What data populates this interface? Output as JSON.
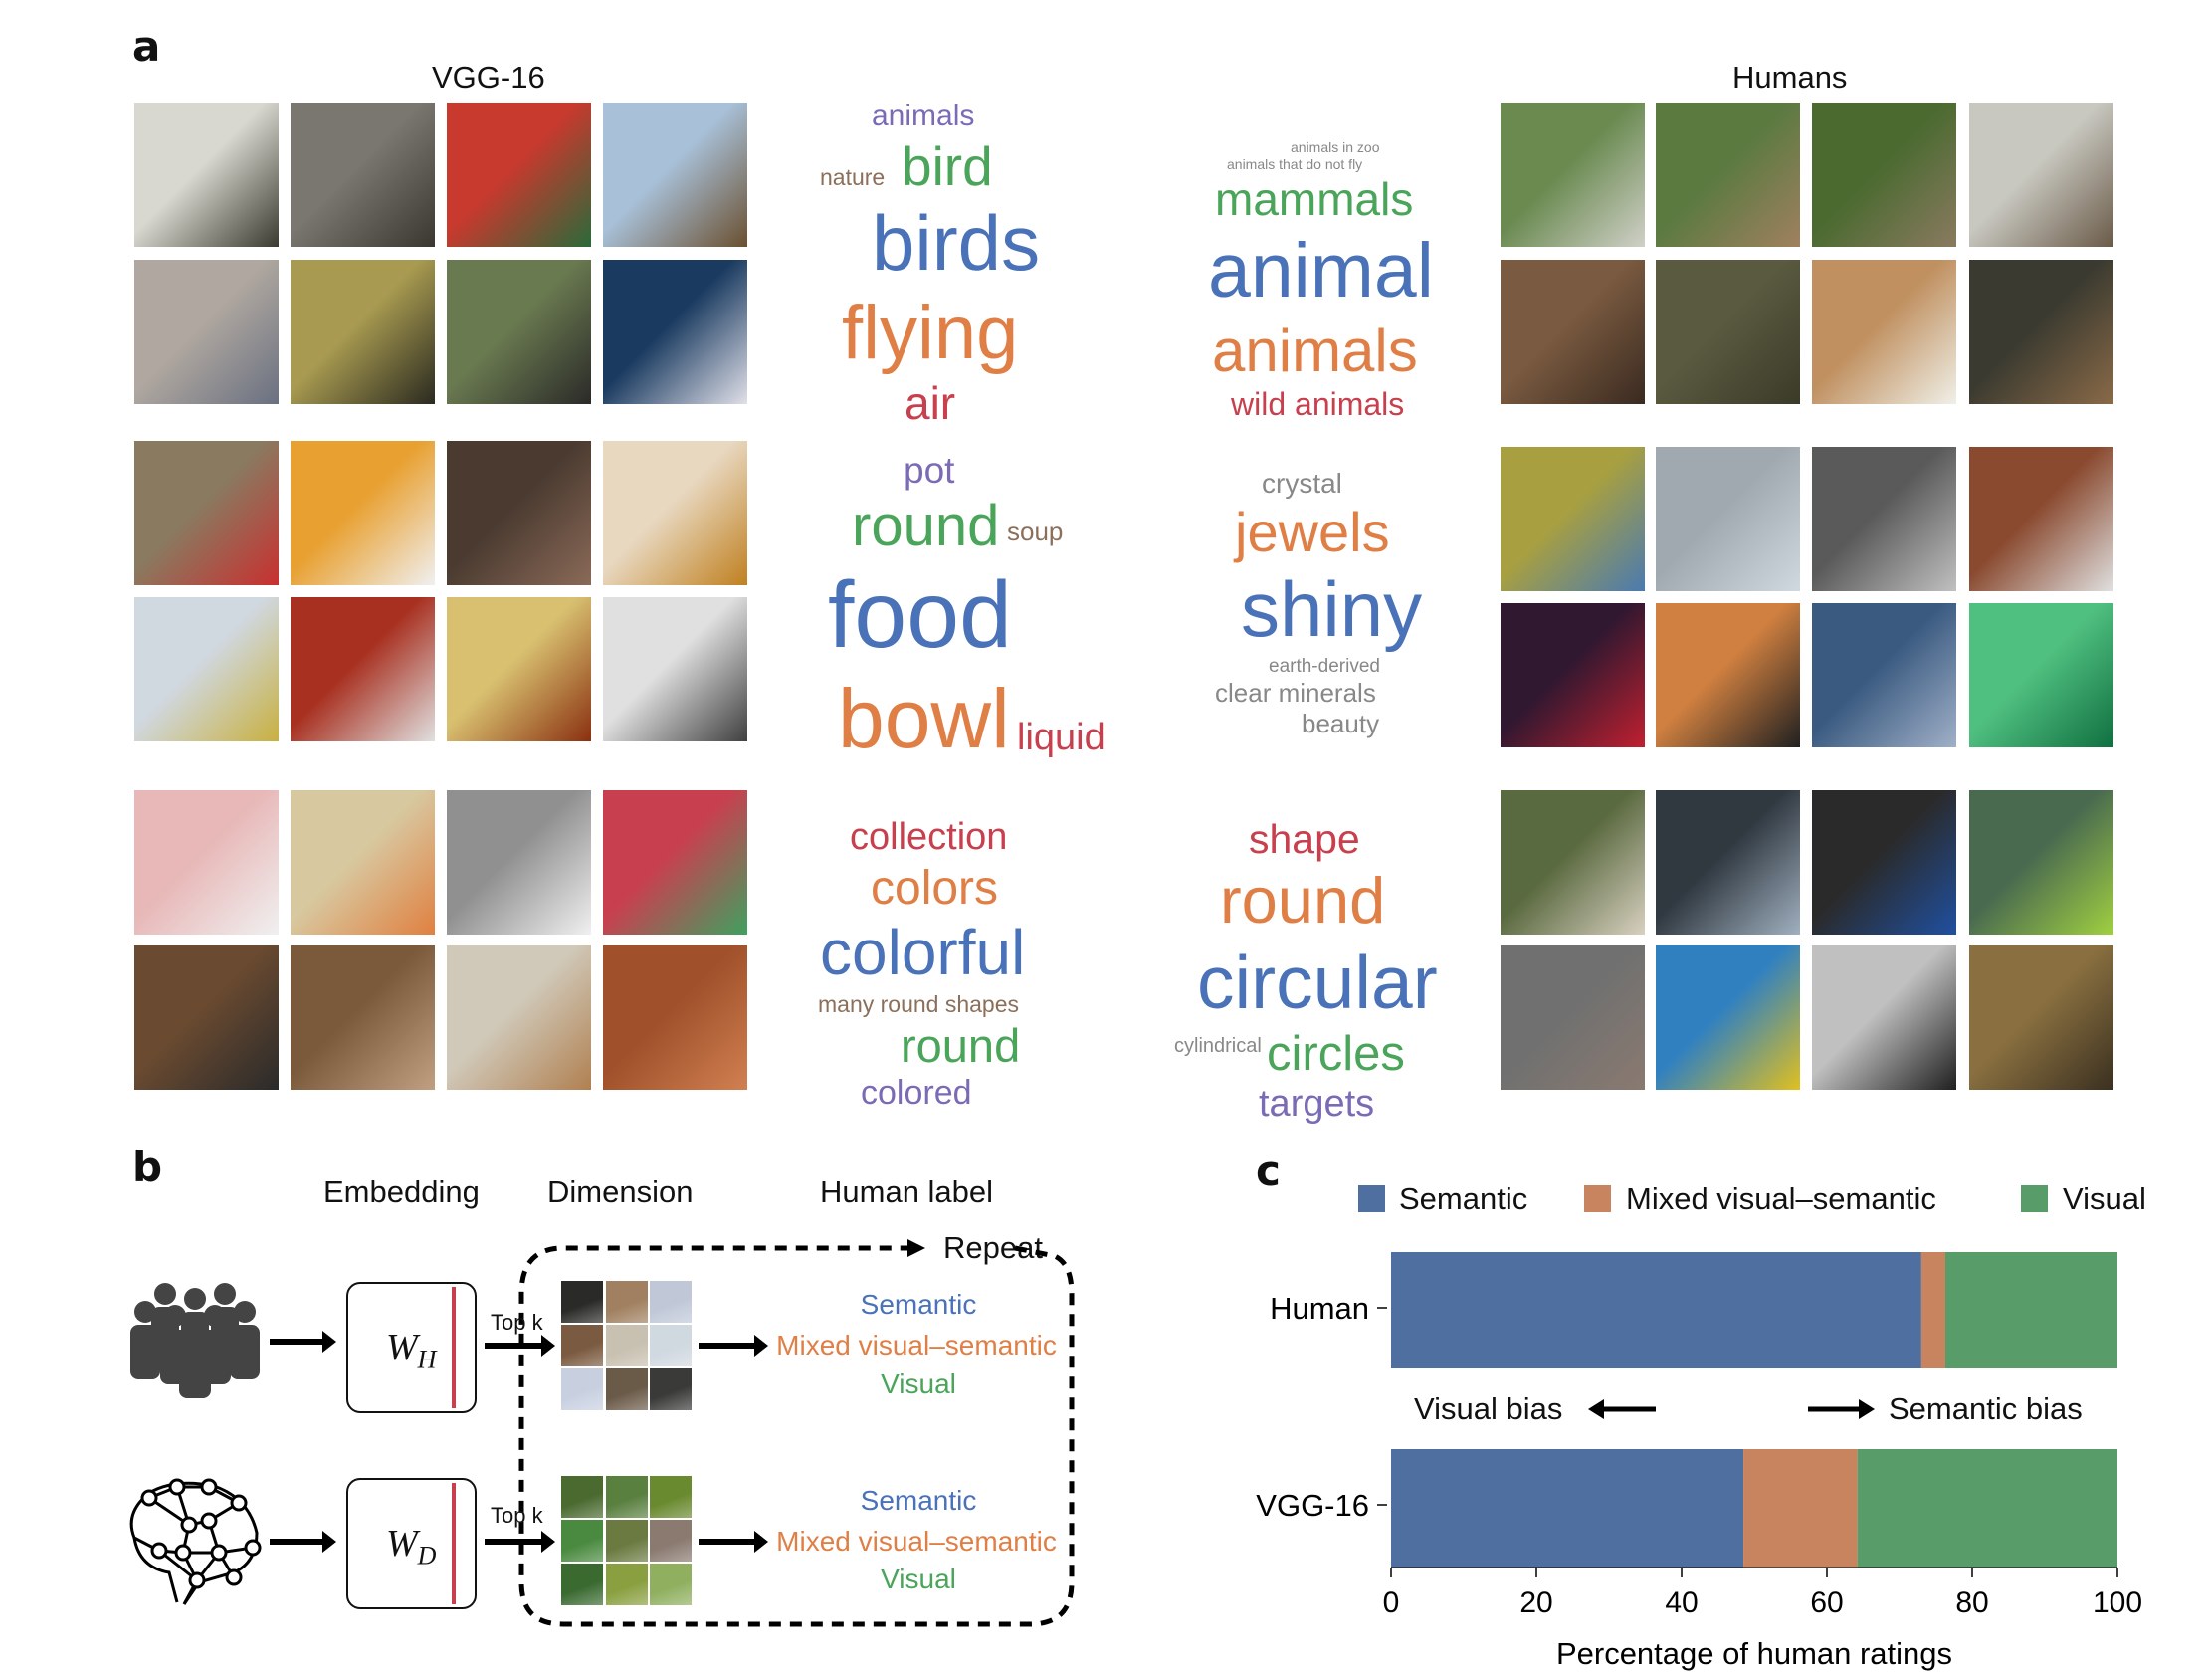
{
  "panel_a": {
    "letter": "a",
    "left_title": "VGG-16",
    "right_title": "Humans",
    "clouds": [
      {
        "words": [
          {
            "text": "animals",
            "color": "#7b6bb5"
          },
          {
            "text": "bird",
            "color": "#4aa55a"
          },
          {
            "text": "nature",
            "color": "#8b6f5a"
          },
          {
            "text": "birds",
            "color": "#4a72b8"
          },
          {
            "text": "flying",
            "color": "#e07f45"
          },
          {
            "text": "air",
            "color": "#c8404e"
          }
        ]
      },
      {
        "words": [
          {
            "text": "animals in zoo",
            "color": "#888888"
          },
          {
            "text": "animals that do not fly",
            "color": "#888888"
          },
          {
            "text": "mammals",
            "color": "#4aa55a"
          },
          {
            "text": "animal",
            "color": "#4a72b8"
          },
          {
            "text": "animals",
            "color": "#e07f45"
          },
          {
            "text": "wild animals",
            "color": "#c8404e"
          }
        ]
      },
      {
        "words": [
          {
            "text": "pot",
            "color": "#7b6bb5"
          },
          {
            "text": "round",
            "color": "#4aa55a"
          },
          {
            "text": "soup",
            "color": "#8b6f5a"
          },
          {
            "text": "food",
            "color": "#4a72b8"
          },
          {
            "text": "bowl",
            "color": "#e07f45"
          },
          {
            "text": "liquid",
            "color": "#c8404e"
          }
        ]
      },
      {
        "words": [
          {
            "text": "crystal",
            "color": "#888888"
          },
          {
            "text": "jewels",
            "color": "#e07f45"
          },
          {
            "text": "shiny",
            "color": "#4a72b8"
          },
          {
            "text": "earth-derived",
            "color": "#888888"
          },
          {
            "text": "clear minerals",
            "color": "#888888"
          },
          {
            "text": "beauty",
            "color": "#888888"
          }
        ]
      },
      {
        "words": [
          {
            "text": "collection",
            "color": "#c8404e"
          },
          {
            "text": "colors",
            "color": "#e07f45"
          },
          {
            "text": "colorful",
            "color": "#4a72b8"
          },
          {
            "text": "many round shapes",
            "color": "#8b6f5a"
          },
          {
            "text": "round",
            "color": "#4aa55a"
          },
          {
            "text": "colored",
            "color": "#7b6bb5"
          }
        ]
      },
      {
        "words": [
          {
            "text": "shape",
            "color": "#c8404e"
          },
          {
            "text": "round",
            "color": "#e07f45"
          },
          {
            "text": "circular",
            "color": "#4a72b8"
          },
          {
            "text": "cylindrical",
            "color": "#888888"
          },
          {
            "text": "circles",
            "color": "#4aa55a"
          },
          {
            "text": "targets",
            "color": "#7b6bb5"
          }
        ]
      }
    ]
  },
  "panel_b": {
    "letter": "b",
    "headers": {
      "embedding": "Embedding",
      "dimension": "Dimension",
      "human_label": "Human label"
    },
    "repeat": "Repeat",
    "human_matrix": {
      "symbol": "W",
      "subscript": "H"
    },
    "dnn_matrix": {
      "symbol": "W",
      "subscript": "D"
    },
    "topk": "Top k",
    "labels": {
      "semantic": "Semantic",
      "mixed": "Mixed visual–semantic",
      "visual": "Visual"
    },
    "icons": {
      "humans": "people-group-icon",
      "dnn": "neural-network-brain-icon"
    }
  },
  "panel_c": {
    "letter": "c",
    "bias_left": "Visual bias",
    "bias_right": "Semantic bias"
  },
  "chart_data": {
    "type": "bar",
    "orientation": "horizontal-stacked",
    "categories": [
      "Human",
      "VGG-16"
    ],
    "series": [
      {
        "name": "Semantic",
        "color": "#4f6fa0",
        "values": [
          73.0,
          48.5
        ]
      },
      {
        "name": "Mixed visual–semantic",
        "color": "#c8845e",
        "values": [
          3.3,
          15.7
        ]
      },
      {
        "name": "Visual",
        "color": "#579c69",
        "values": [
          23.7,
          35.8
        ]
      }
    ],
    "xlabel": "Percentage of human ratings",
    "xlim": [
      0,
      100
    ],
    "xticks": [
      0,
      20,
      40,
      60,
      80,
      100
    ],
    "legend": "top",
    "grid": false
  }
}
